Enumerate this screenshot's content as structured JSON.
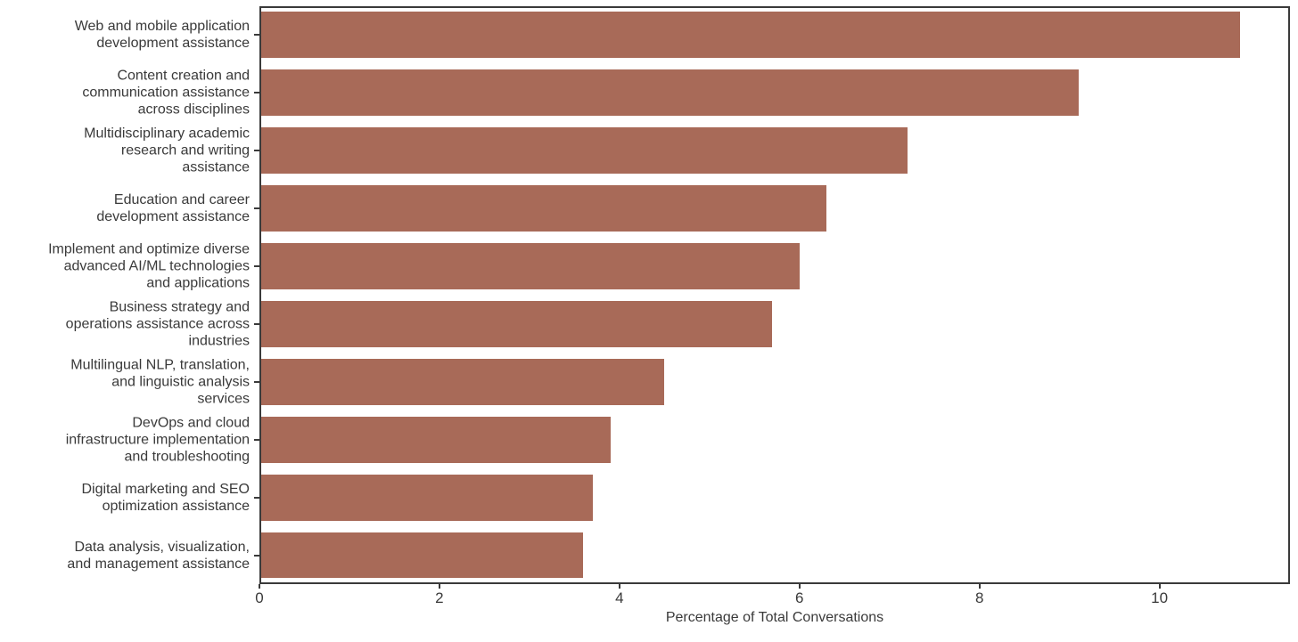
{
  "chart_data": {
    "type": "bar",
    "orientation": "horizontal",
    "title": "",
    "xlabel": "Percentage of Total Conversations",
    "ylabel": "",
    "categories": [
      "Web and mobile application\ndevelopment assistance",
      "Content creation and\ncommunication assistance\nacross disciplines",
      "Multidisciplinary academic\nresearch and writing\nassistance",
      "Education and career\ndevelopment assistance",
      "Implement and optimize diverse\nadvanced AI/ML technologies\nand applications",
      "Business strategy and\noperations assistance across\nindustries",
      "Multilingual NLP, translation,\nand linguistic analysis\nservices",
      "DevOps and cloud\ninfrastructure implementation\nand troubleshooting",
      "Digital marketing and SEO\noptimization assistance",
      "Data analysis, visualization,\nand management assistance"
    ],
    "values": [
      10.9,
      9.1,
      7.2,
      6.3,
      6.0,
      5.7,
      4.5,
      3.9,
      3.7,
      3.6
    ],
    "xticks": [
      0,
      2,
      4,
      6,
      8,
      10
    ],
    "xlim": [
      0,
      11.45
    ],
    "bar_color": "#a86a58",
    "axis_color": "#3a3a3a",
    "bar_height_frac": 0.8,
    "grid": false,
    "legend": null
  }
}
